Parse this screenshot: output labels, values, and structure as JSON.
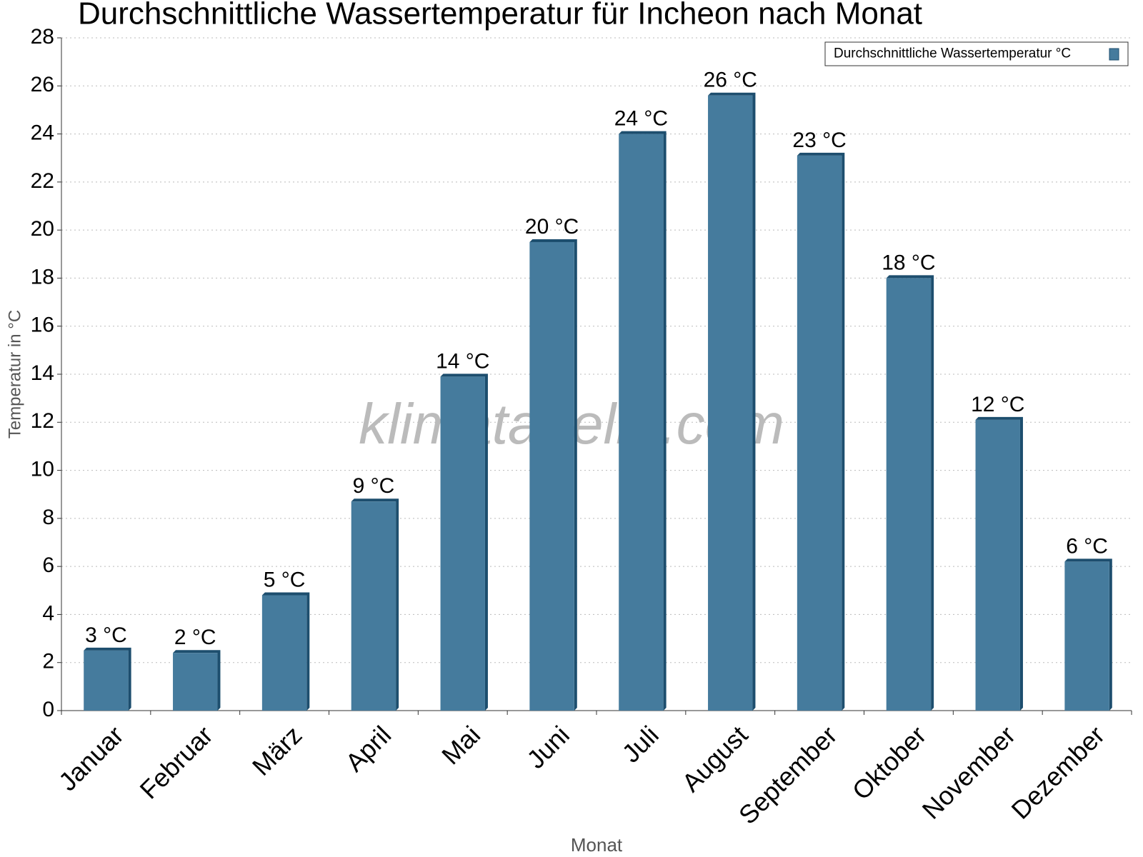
{
  "chart_data": {
    "type": "bar",
    "title": "Durchschnittliche Wassertemperatur für Incheon nach Monat",
    "x_label": "Monat",
    "y_label": "Temperatur in °C",
    "watermark": "klimatabelle.com",
    "categories": [
      "Januar",
      "Februar",
      "März",
      "April",
      "Mai",
      "Juni",
      "Juli",
      "August",
      "September",
      "Oktober",
      "November",
      "Dezember"
    ],
    "series": [
      {
        "name": "Durchschnittliche Wassertemperatur °C",
        "color": "#457b9d",
        "values": [
          2.5,
          2.4,
          4.8,
          8.7,
          13.9,
          19.5,
          24.0,
          25.6,
          23.1,
          18.0,
          12.1,
          6.2
        ],
        "value_labels": [
          "3 °C",
          "2 °C",
          "5 °C",
          "9 °C",
          "14 °C",
          "20 °C",
          "24 °C",
          "26 °C",
          "23 °C",
          "18 °C",
          "12 °C",
          "6 °C"
        ]
      }
    ],
    "ylim": [
      0,
      28
    ],
    "yticks": [
      0,
      2,
      4,
      6,
      8,
      10,
      12,
      14,
      16,
      18,
      20,
      22,
      24,
      26,
      28
    ],
    "grid": true,
    "legend": "top-right"
  }
}
